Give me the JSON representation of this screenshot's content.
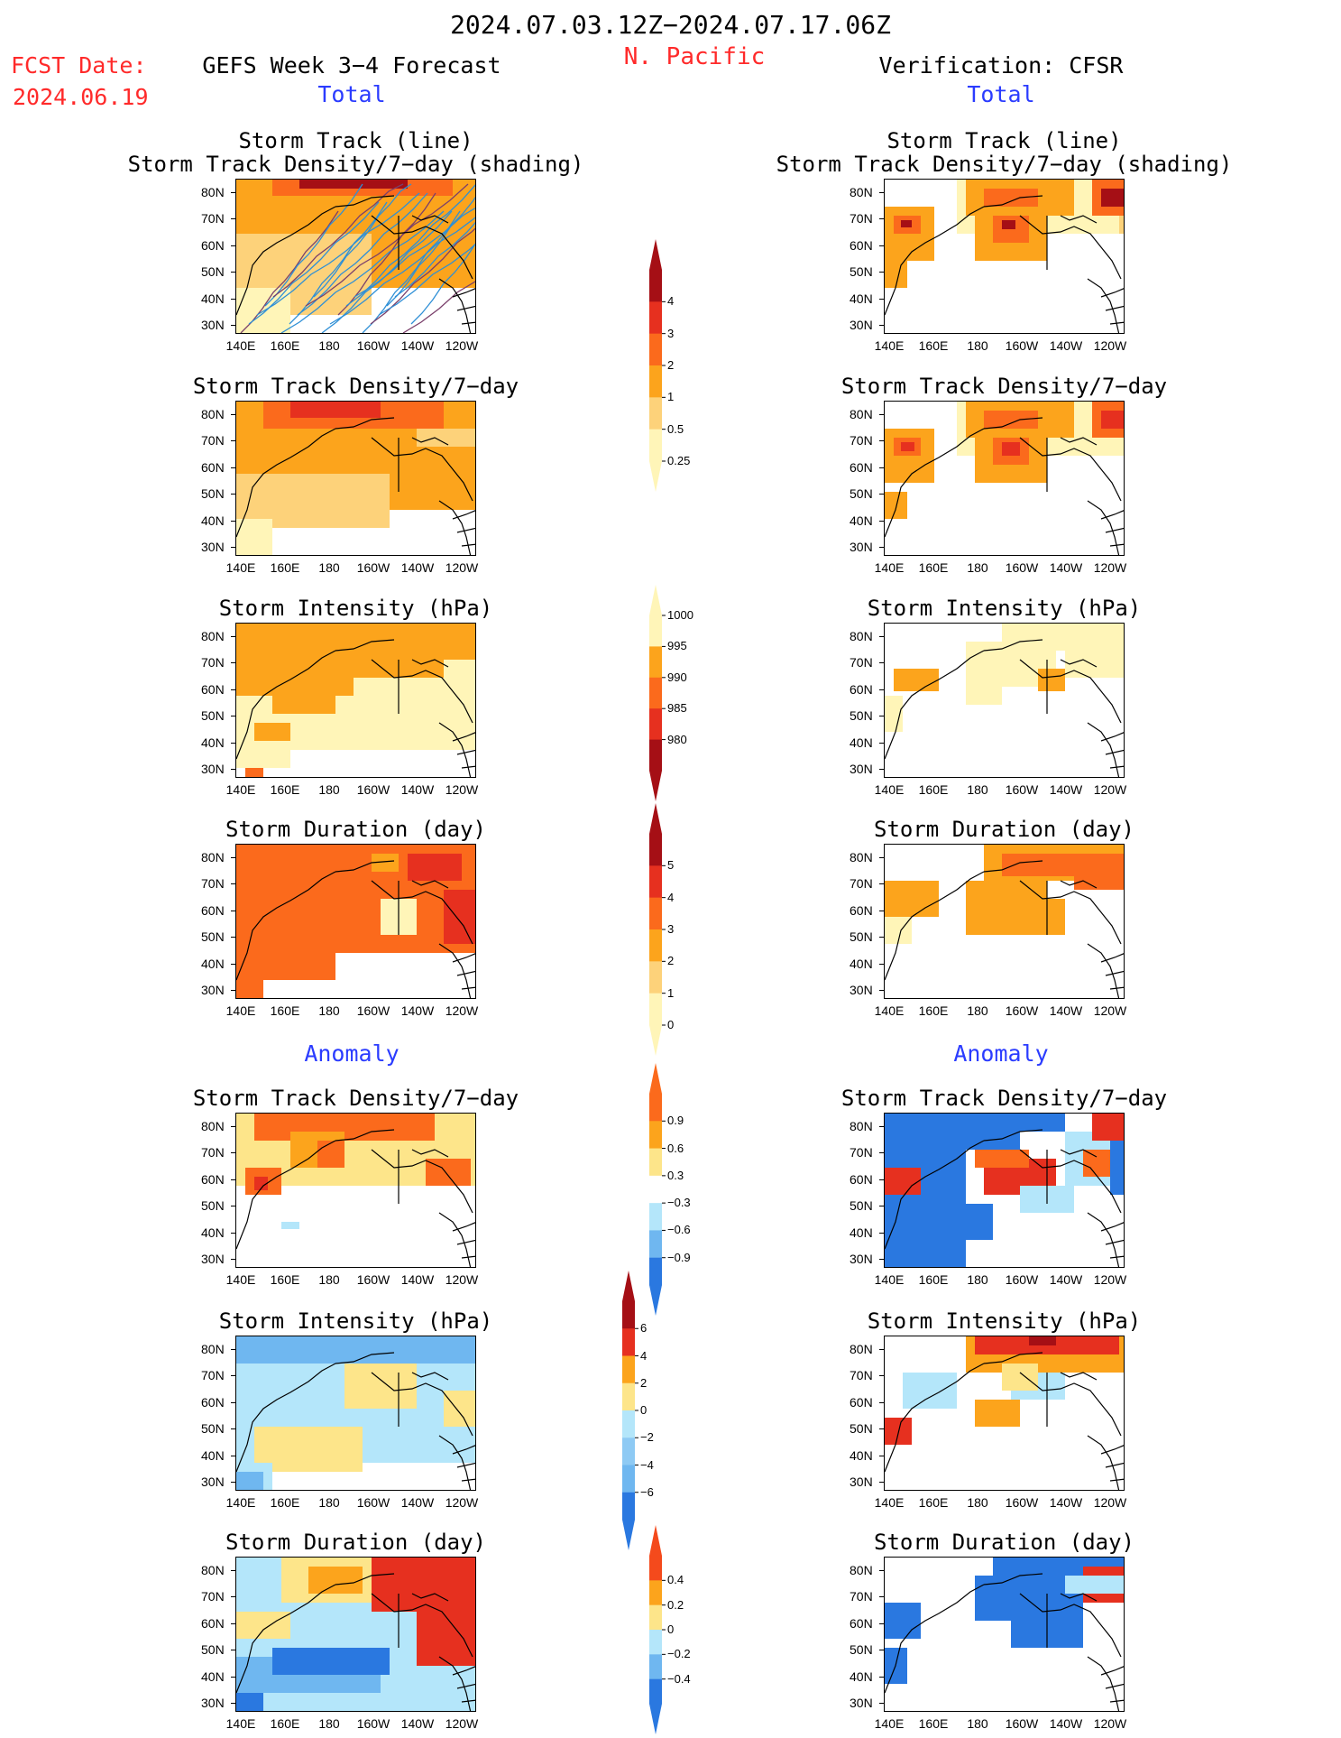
{
  "header": {
    "date_range": "2024.07.03.12Z−2024.07.17.06Z",
    "region": "N. Pacific",
    "fcst_label": "FCST Date:",
    "fcst_date": "2024.06.19",
    "left_title": "GEFS Week 3−4 Forecast",
    "right_title": "Verification: CFSR",
    "total_label": "Total",
    "anomaly_label": "Anomaly"
  },
  "axes": {
    "lat_ticks": [
      "80N",
      "70N",
      "60N",
      "50N",
      "40N",
      "30N"
    ],
    "lon_ticks": [
      "140E",
      "160E",
      "180",
      "160W",
      "140W",
      "120W"
    ]
  },
  "panels": {
    "track_line": "Storm Track (line)",
    "track_shading": "Storm Track Density/7−day (shading)",
    "density": "Storm Track Density/7−day",
    "intensity": "Storm Intensity (hPa)",
    "duration": "Storm Duration (day)"
  },
  "colorbars": {
    "density_total": {
      "labels": [
        "4",
        "3",
        "2",
        "1",
        "0.5",
        "0.25"
      ],
      "colors": [
        "#a50f15",
        "#e6301f",
        "#fb6a1c",
        "#fca41c",
        "#fdd27a",
        "#fff5b8"
      ]
    },
    "intensity_total": {
      "labels": [
        "1000",
        "995",
        "990",
        "985",
        "980"
      ],
      "colors": [
        "#fff5b8",
        "#fca41c",
        "#fb6a1c",
        "#e6301f",
        "#a50f15"
      ]
    },
    "duration_total": {
      "labels": [
        "5",
        "4",
        "3",
        "2",
        "1",
        "0"
      ],
      "colors": [
        "#a50f15",
        "#e6301f",
        "#fb6a1c",
        "#fca41c",
        "#fdd27a",
        "#fff5b8"
      ]
    },
    "density_anom": {
      "labels": [
        "0.9",
        "0.6",
        "0.3",
        "−0.3",
        "−0.6",
        "−0.9"
      ],
      "colors": [
        "#fb6a1c",
        "#fca41c",
        "#fde58a",
        "#ffffff",
        "#b4e6fa",
        "#6fb7f0",
        "#2a78e0"
      ]
    },
    "intensity_anom": {
      "labels": [
        "6",
        "4",
        "2",
        "0",
        "−2",
        "−4",
        "−6"
      ],
      "colors": [
        "#a50f15",
        "#e6301f",
        "#fca41c",
        "#fde58a",
        "#b4e6fa",
        "#8ecaf4",
        "#6fb7f0",
        "#2a78e0"
      ]
    },
    "duration_anom": {
      "labels": [
        "0.4",
        "0.2",
        "0",
        "−0.2",
        "−0.4"
      ],
      "colors": [
        "#f44a1c",
        "#fca41c",
        "#fde58a",
        "#b4e6fa",
        "#6fb7f0",
        "#2a78e0"
      ]
    }
  }
}
